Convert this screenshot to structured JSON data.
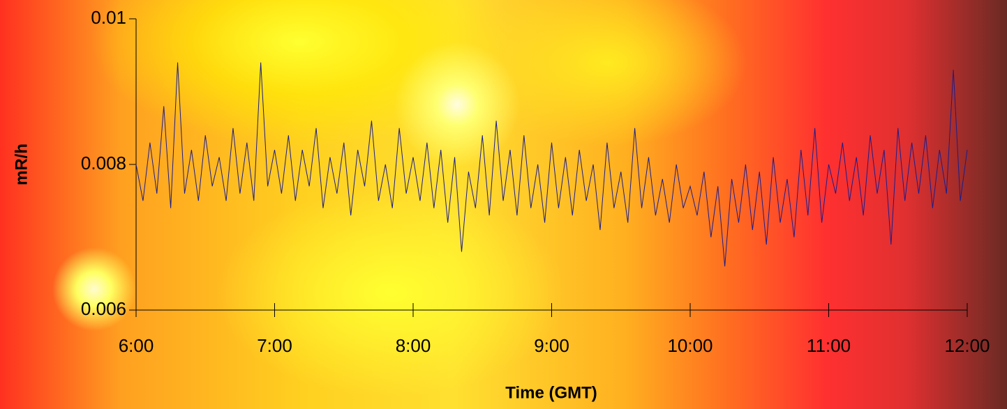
{
  "chart_data": {
    "type": "line",
    "x_label": "Time (GMT)",
    "y_label": "mR/h",
    "color": "#1c1c8a",
    "x": [
      6,
      6.05,
      6.1,
      6.15,
      6.2,
      6.25,
      6.3,
      6.35,
      6.4,
      6.45,
      6.5,
      6.55,
      6.6,
      6.65,
      6.7,
      6.75,
      6.8,
      6.85,
      6.9,
      6.95,
      7,
      7.05,
      7.1,
      7.15,
      7.2,
      7.25,
      7.3,
      7.35,
      7.4,
      7.45,
      7.5,
      7.55,
      7.6,
      7.65,
      7.7,
      7.75,
      7.8,
      7.85,
      7.9,
      7.95,
      8,
      8.05,
      8.1,
      8.15,
      8.2,
      8.25,
      8.3,
      8.35,
      8.4,
      8.45,
      8.5,
      8.55,
      8.6,
      8.65,
      8.7,
      8.75,
      8.8,
      8.85,
      8.9,
      8.95,
      9,
      9.05,
      9.1,
      9.15,
      9.2,
      9.25,
      9.3,
      9.35,
      9.4,
      9.45,
      9.5,
      9.55,
      9.6,
      9.65,
      9.7,
      9.75,
      9.8,
      9.85,
      9.9,
      9.95,
      10,
      10.05,
      10.1,
      10.15,
      10.2,
      10.25,
      10.3,
      10.35,
      10.4,
      10.45,
      10.5,
      10.55,
      10.6,
      10.65,
      10.7,
      10.75,
      10.8,
      10.85,
      10.9,
      10.95,
      11,
      11.05,
      11.1,
      11.15,
      11.2,
      11.25,
      11.3,
      11.35,
      11.4,
      11.45,
      11.5,
      11.55,
      11.6,
      11.65,
      11.7,
      11.75,
      11.8,
      11.85,
      11.9,
      11.95,
      12
    ],
    "values": [
      0.008,
      0.0075,
      0.0083,
      0.0076,
      0.0088,
      0.0074,
      0.0094,
      0.0076,
      0.0082,
      0.0075,
      0.0084,
      0.0077,
      0.0081,
      0.0075,
      0.0085,
      0.0076,
      0.0083,
      0.0075,
      0.0094,
      0.0077,
      0.0082,
      0.0076,
      0.0084,
      0.0075,
      0.0082,
      0.0077,
      0.0085,
      0.0074,
      0.0081,
      0.0076,
      0.0083,
      0.0073,
      0.0082,
      0.0077,
      0.0086,
      0.0075,
      0.008,
      0.0074,
      0.0085,
      0.0076,
      0.0081,
      0.0075,
      0.0083,
      0.0074,
      0.0082,
      0.0072,
      0.0081,
      0.0068,
      0.0079,
      0.0074,
      0.0084,
      0.0073,
      0.0086,
      0.0075,
      0.0082,
      0.0073,
      0.0084,
      0.0074,
      0.008,
      0.0072,
      0.0083,
      0.0074,
      0.0081,
      0.0073,
      0.0082,
      0.0075,
      0.008,
      0.0071,
      0.0083,
      0.0074,
      0.0079,
      0.0072,
      0.0085,
      0.0074,
      0.0081,
      0.0073,
      0.0078,
      0.0072,
      0.008,
      0.0074,
      0.0077,
      0.0073,
      0.0079,
      0.007,
      0.0077,
      0.0066,
      0.0078,
      0.0072,
      0.008,
      0.0071,
      0.0079,
      0.0069,
      0.0081,
      0.0072,
      0.0078,
      0.007,
      0.0082,
      0.0073,
      0.0085,
      0.0072,
      0.008,
      0.0076,
      0.0083,
      0.0075,
      0.0081,
      0.0073,
      0.0084,
      0.0076,
      0.0082,
      0.0069,
      0.0085,
      0.0075,
      0.0083,
      0.0076,
      0.0084,
      0.0074,
      0.0082,
      0.0076,
      0.0093,
      0.0075,
      0.0082
    ],
    "xlim": [
      6,
      12
    ],
    "xticks": [
      {
        "value": 6,
        "label": "6:00"
      },
      {
        "value": 7,
        "label": "7:00"
      },
      {
        "value": 8,
        "label": "8:00"
      },
      {
        "value": 9,
        "label": "9:00"
      },
      {
        "value": 10,
        "label": "10:00"
      },
      {
        "value": 11,
        "label": "11:00"
      },
      {
        "value": 12,
        "label": "12:00"
      }
    ],
    "ylim": [
      0.006,
      0.01
    ],
    "yticks": [
      0.006,
      0.008,
      0.01
    ],
    "grid": false
  }
}
